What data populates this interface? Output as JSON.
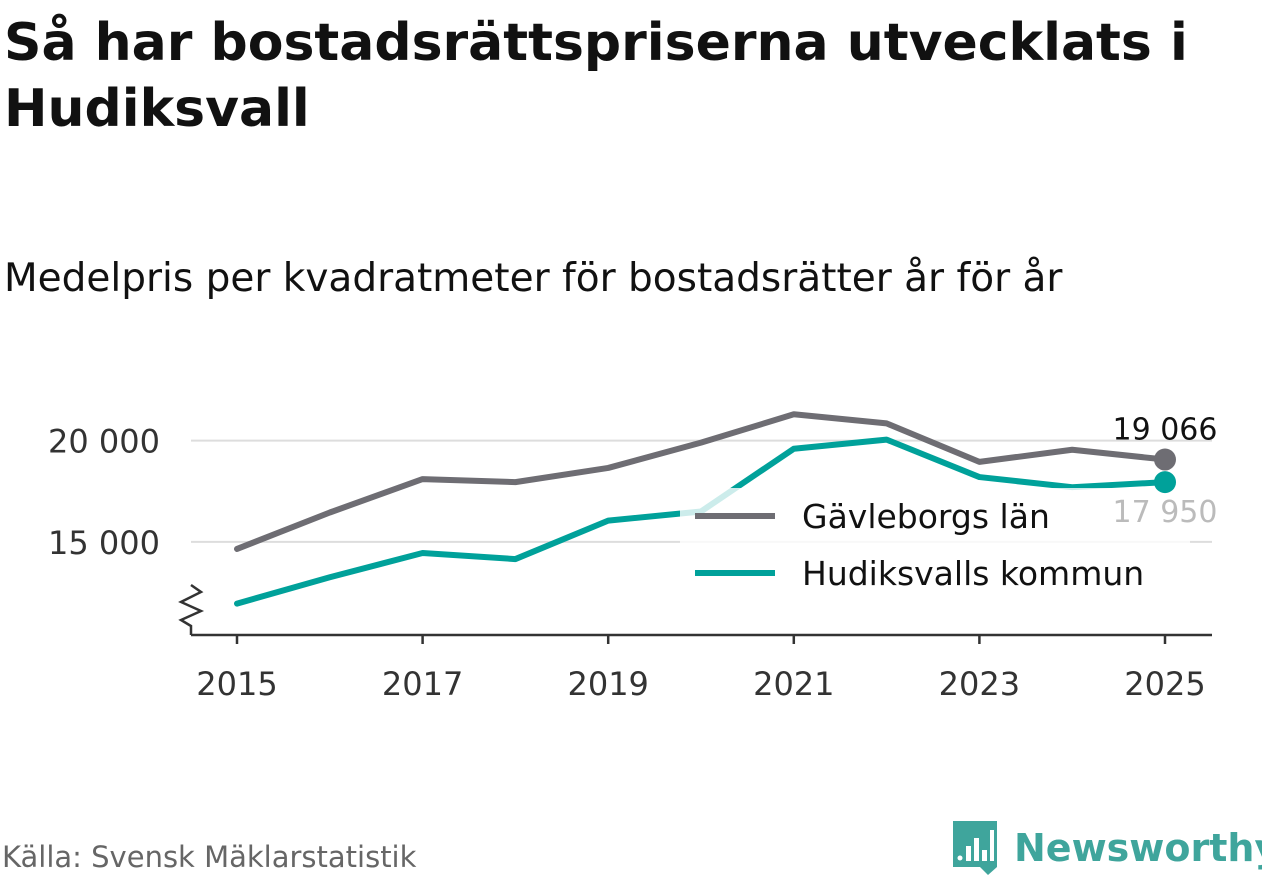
{
  "title": "Så har bostadsrättspriserna utvecklats i Hudiksvall",
  "subtitle": "Medelpris per kvadratmeter för bostadsrätter år för år",
  "source": "Källa: Svensk Mäklarstatistik",
  "brand": {
    "name": "Newsworthy",
    "logo_icon": "newsworthy-logo-icon",
    "color": "#3fa59c"
  },
  "chart_data": {
    "type": "line",
    "title": "Medelpris per kvadratmeter för bostadsrätter år för år",
    "xlabel": "",
    "ylabel": "",
    "x": [
      2015,
      2016,
      2017,
      2018,
      2019,
      2020,
      2021,
      2022,
      2023,
      2024,
      2025
    ],
    "x_ticks": [
      "2015",
      "2017",
      "2019",
      "2021",
      "2023",
      "2025"
    ],
    "y_ticks": [
      "15 000",
      "20 000"
    ],
    "ylim": [
      10400,
      22500
    ],
    "axis_break": true,
    "grid": true,
    "legend_position": "right",
    "series": [
      {
        "name": "Gävleborgs län",
        "color": "#6e6d73",
        "values": [
          14650,
          16450,
          18100,
          17950,
          18650,
          19900,
          21300,
          20850,
          18950,
          19550,
          19066
        ],
        "end_label": "19 066"
      },
      {
        "name": "Hudiksvalls kommun",
        "color": "#00a19a",
        "values": [
          11950,
          13250,
          14450,
          14150,
          16050,
          16500,
          19600,
          20050,
          18200,
          17700,
          17950
        ],
        "end_label": "17 950"
      }
    ]
  }
}
